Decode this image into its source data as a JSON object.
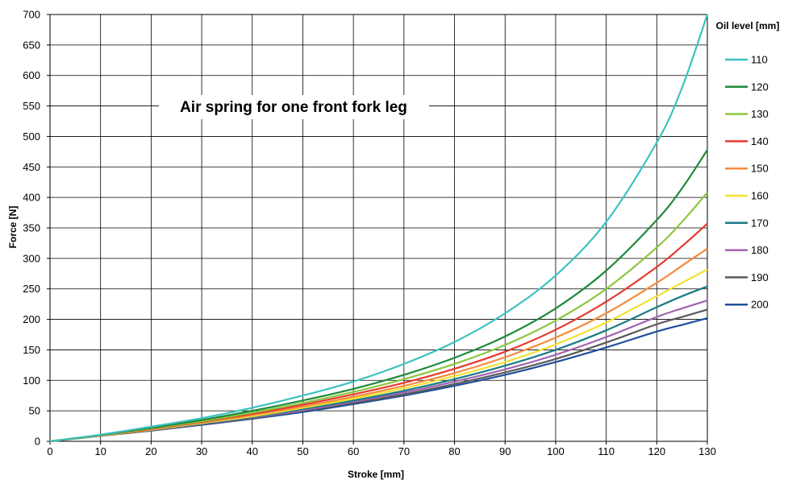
{
  "chart_data": {
    "type": "line",
    "title": "Air spring for one front fork leg",
    "xlabel": "Stroke [mm]",
    "ylabel": "Force [N]",
    "xlim": [
      0,
      130
    ],
    "ylim": [
      0,
      700
    ],
    "x_ticks": [
      0,
      10,
      20,
      30,
      40,
      50,
      60,
      70,
      80,
      90,
      100,
      110,
      120,
      130
    ],
    "y_ticks": [
      0,
      50,
      100,
      150,
      200,
      250,
      300,
      350,
      400,
      450,
      500,
      550,
      600,
      650,
      700
    ],
    "grid": true,
    "legend": {
      "title": "Oil level [mm]",
      "position": "right"
    },
    "x": [
      0,
      10,
      20,
      30,
      40,
      50,
      60,
      70,
      80,
      90,
      100,
      110,
      120,
      125,
      130
    ],
    "series": [
      {
        "name": "110",
        "color": "#3ec1c1",
        "values": [
          0,
          11,
          24,
          38,
          55,
          75,
          98,
          127,
          163,
          210,
          272,
          360,
          490,
          580,
          700
        ]
      },
      {
        "name": "120",
        "color": "#1f8a3b",
        "values": [
          0,
          10.5,
          22,
          35,
          50,
          67,
          86,
          109,
          137,
          172,
          218,
          280,
          363,
          415,
          478
        ]
      },
      {
        "name": "130",
        "color": "#8cc63f",
        "values": [
          0,
          10,
          21,
          33,
          47,
          63,
          81,
          102,
          127,
          158,
          198,
          250,
          318,
          360,
          408
        ]
      },
      {
        "name": "140",
        "color": "#e53a2f",
        "values": [
          0,
          10,
          20,
          32,
          45,
          60,
          77,
          96,
          119,
          147,
          183,
          229,
          286,
          320,
          357
        ]
      },
      {
        "name": "150",
        "color": "#f58a3c",
        "values": [
          0,
          10,
          20,
          31,
          43,
          57,
          73,
          91,
          112,
          138,
          170,
          210,
          260,
          288,
          316
        ]
      },
      {
        "name": "160",
        "color": "#f2e230",
        "values": [
          0,
          9.5,
          19,
          30,
          41,
          55,
          70,
          87,
          107,
          130,
          159,
          195,
          238,
          260,
          282
        ]
      },
      {
        "name": "170",
        "color": "#1b7b84",
        "values": [
          0,
          9.5,
          19,
          29,
          40,
          53,
          67,
          83,
          102,
          124,
          150,
          182,
          220,
          238,
          254
        ]
      },
      {
        "name": "180",
        "color": "#a163b0",
        "values": [
          0,
          9.5,
          18.5,
          28.5,
          39,
          51,
          65,
          80,
          98,
          118,
          142,
          171,
          204,
          218,
          231
        ]
      },
      {
        "name": "190",
        "color": "#5a5a5a",
        "values": [
          0,
          9,
          18,
          28,
          38,
          50,
          63,
          77,
          94,
          113,
          135,
          162,
          192,
          204,
          216
        ]
      },
      {
        "name": "200",
        "color": "#1f4f9c",
        "values": [
          0,
          9,
          17.5,
          27,
          37,
          48,
          61,
          75,
          91,
          109,
          130,
          154,
          180,
          191,
          202
        ]
      }
    ]
  }
}
